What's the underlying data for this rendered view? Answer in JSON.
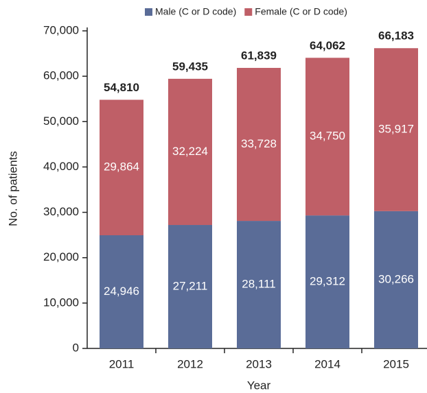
{
  "chart_data": {
    "type": "stacked-bar",
    "categories": [
      "2011",
      "2012",
      "2013",
      "2014",
      "2015"
    ],
    "x_label": "Year",
    "y_label": "No. of patients",
    "series": [
      {
        "name": "Male (C or D code)",
        "color": "#5a6c97",
        "values": [
          24946,
          27211,
          28111,
          29312,
          30266
        ],
        "value_labels": [
          "24,946",
          "27,211",
          "28,111",
          "29,312",
          "30,266"
        ]
      },
      {
        "name": "Female (C or D code)",
        "color": "#bf5f67",
        "values": [
          29864,
          32224,
          33728,
          34750,
          35917
        ],
        "value_labels": [
          "29,864",
          "32,224",
          "33,728",
          "34,750",
          "35,917"
        ]
      }
    ],
    "totals": {
      "values": [
        54810,
        59435,
        61839,
        64062,
        66183
      ],
      "value_labels": [
        "54,810",
        "59,435",
        "61,839",
        "64,062",
        "66,183"
      ]
    },
    "ylim": [
      0,
      70000
    ],
    "yticks": [
      0,
      {
        "value": 10000,
        "label": "10,000"
      },
      {
        "value": 20000,
        "label": "20,000"
      },
      {
        "value": 30000,
        "label": "30,000"
      },
      {
        "value": 40000,
        "label": "40,000"
      },
      {
        "value": 50000,
        "label": "50,000"
      },
      {
        "value": 60000,
        "label": "60,000"
      },
      {
        "value": 70000,
        "label": "70,000"
      }
    ]
  }
}
